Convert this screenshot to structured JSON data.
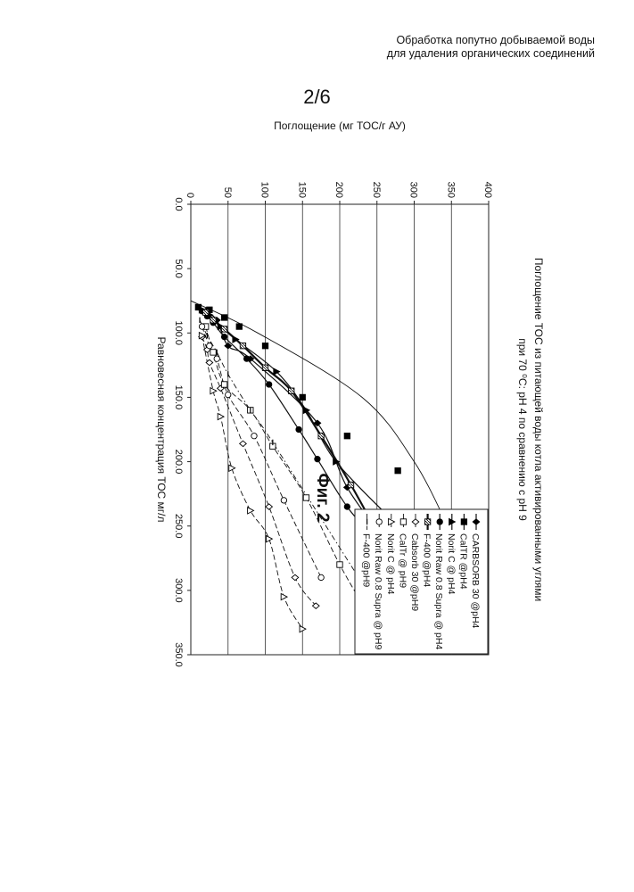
{
  "header": {
    "line1": "Обработка попутно добываемой воды",
    "line2": "для удаления органических соединений"
  },
  "page_number": "2/6",
  "figure_label": "Фиг. 2",
  "chart_data": {
    "type": "scatter",
    "title": "Поглощение ТОС из питающей воды котла активированными углями при 70 ⁰С: рН 4 по сравнению с рН 9",
    "title_line1": "Поглощение ТОС из питающей воды котла активированными углями",
    "title_line2": "при 70 ⁰С: рН 4 по сравнению с рН 9",
    "xlabel": "Равновесная концентрация ТОС мг/л",
    "ylabel": "Поглощение (мг ТОС/г АУ)",
    "xlim": [
      0,
      350
    ],
    "ylim": [
      0,
      400
    ],
    "x_ticks": [
      "0.0",
      "50.0",
      "100.0",
      "150.0",
      "200.0",
      "250.0",
      "300.0",
      "350.0"
    ],
    "y_ticks": [
      "0",
      "50",
      "100",
      "150",
      "200",
      "250",
      "300",
      "350",
      "400"
    ],
    "grid": "horizontal",
    "orientation": "rotated 90° clockwise",
    "legend_position": "top-right",
    "series": [
      {
        "name": "CARBSORB 30 @pH4",
        "marker": "diamond-filled",
        "line": "solid",
        "x": [
          83,
          90,
          110,
          120,
          170,
          220,
          262
        ],
        "y": [
          20,
          35,
          50,
          80,
          170,
          210,
          262
        ]
      },
      {
        "name": "CalTR @pH4",
        "marker": "square-filled",
        "line": "none",
        "x": [
          80,
          82,
          88,
          95,
          110,
          150,
          180,
          207,
          258
        ],
        "y": [
          10,
          25,
          45,
          65,
          100,
          150,
          210,
          278,
          310
        ]
      },
      {
        "name": "Norit C @ pH4",
        "marker": "triangle-filled",
        "line": "solid",
        "x": [
          82,
          86,
          95,
          105,
          130,
          160,
          200,
          248
        ],
        "y": [
          15,
          25,
          40,
          60,
          115,
          155,
          195,
          275
        ]
      },
      {
        "name": "Norit Raw 0.8 Supra @ pH4",
        "marker": "circle-filled",
        "line": "solid",
        "x": [
          83,
          87,
          92,
          103,
          120,
          140,
          175,
          198,
          235,
          262
        ],
        "y": [
          15,
          22,
          30,
          45,
          75,
          105,
          145,
          170,
          210,
          250
        ]
      },
      {
        "name": "F-400 @pH4",
        "marker": "square-hatched",
        "line": "solid-thick",
        "x": [
          84,
          90,
          97,
          110,
          127,
          145,
          180,
          218,
          260
        ],
        "y": [
          20,
          30,
          45,
          70,
          100,
          135,
          175,
          215,
          255
        ]
      },
      {
        "name": "Cabsorb 30 @pH9",
        "marker": "diamond-open",
        "line": "dashed",
        "x": [
          103,
          113,
          123,
          143,
          186,
          235,
          290,
          312
        ],
        "y": [
          15,
          22,
          25,
          40,
          70,
          105,
          140,
          168
        ]
      },
      {
        "name": "CalTr @ pH9",
        "marker": "square-open",
        "line": "dashed",
        "x": [
          95,
          115,
          140,
          160,
          188,
          228,
          280,
          320
        ],
        "y": [
          20,
          30,
          45,
          80,
          110,
          155,
          200,
          240
        ]
      },
      {
        "name": "Norit C @ pH4",
        "marker": "triangle-open",
        "line": "dashed",
        "x": [
          102,
          145,
          165,
          205,
          238,
          260,
          305,
          330
        ],
        "y": [
          15,
          30,
          40,
          55,
          80,
          105,
          125,
          150
        ]
      },
      {
        "name": "Norit Raw 0.8 Supra @ pH9",
        "marker": "circle-open",
        "line": "dashed",
        "x": [
          95,
          110,
          120,
          148,
          180,
          230,
          290
        ],
        "y": [
          15,
          25,
          35,
          50,
          85,
          125,
          175
        ]
      },
      {
        "name": "F-400 @pH9",
        "marker": "dash",
        "line": "dash-dot",
        "x": [
          90,
          102,
          115,
          132,
          160,
          185,
          308
        ],
        "y": [
          12,
          22,
          35,
          50,
          80,
          110,
          245
        ]
      }
    ],
    "extra_curve": {
      "line": "solid-thin",
      "x": [
        75,
        100,
        150,
        200,
        250
      ],
      "y": [
        0,
        90,
        230,
        300,
        345
      ]
    }
  }
}
